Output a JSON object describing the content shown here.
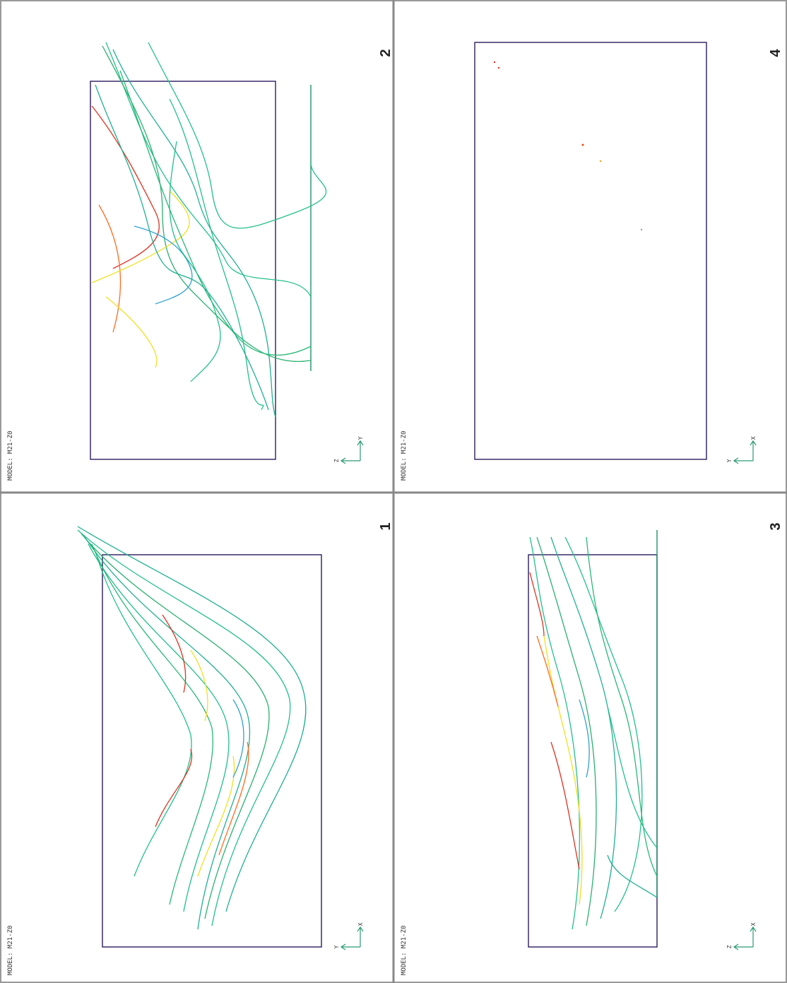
{
  "viewports": [
    {
      "number": "2",
      "model_label": "MODEL: M21-Z0",
      "axis_a": "Z",
      "axis_b": "Y"
    },
    {
      "number": "4",
      "model_label": "MODEL: M21-Z0",
      "axis_a": "Y",
      "axis_b": "X"
    },
    {
      "number": "1",
      "model_label": "MODEL: M21-Z0",
      "axis_a": "Y",
      "axis_b": "X"
    },
    {
      "number": "3",
      "model_label": "MODEL: M21-Z0",
      "axis_a": "Z",
      "axis_b": "X"
    }
  ]
}
